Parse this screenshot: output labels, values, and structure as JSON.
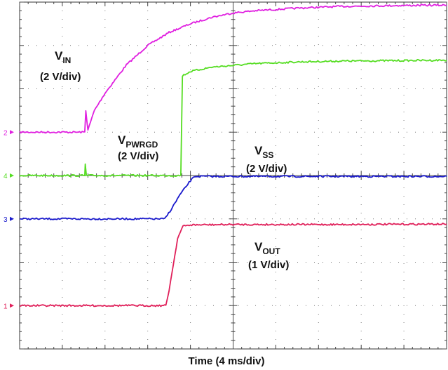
{
  "chart_data": {
    "type": "line",
    "xlabel": "Time (4 ms/div)",
    "x_unit_per_div": 4,
    "x_divisions": 10,
    "y_divisions": 8,
    "xlim": [
      0,
      40
    ],
    "grid": true,
    "series": [
      {
        "marker": "2",
        "color": "#e020e0",
        "label_main": "V",
        "label_sub": "IN",
        "label_scale": "(2 V/div)",
        "baseline_div": 5.0,
        "points": [
          [
            0,
            5.0
          ],
          [
            6.1,
            5.0
          ],
          [
            6.2,
            5.5
          ],
          [
            6.4,
            5.05
          ],
          [
            7,
            5.5
          ],
          [
            8,
            5.9
          ],
          [
            10,
            6.55
          ],
          [
            12,
            7.0
          ],
          [
            14,
            7.3
          ],
          [
            16,
            7.5
          ],
          [
            18,
            7.65
          ],
          [
            20,
            7.75
          ],
          [
            22,
            7.8
          ],
          [
            26,
            7.86
          ],
          [
            30,
            7.9
          ],
          [
            35,
            7.92
          ],
          [
            40,
            7.93
          ]
        ]
      },
      {
        "marker": "4",
        "color": "#55dd22",
        "label_main": "V",
        "label_sub": "PWRGD",
        "label_scale": "(2 V/div)",
        "baseline_div": 4.0,
        "points": [
          [
            0,
            4.0
          ],
          [
            6.1,
            4.0
          ],
          [
            6.15,
            4.25
          ],
          [
            6.25,
            4.0
          ],
          [
            15.1,
            4.0
          ],
          [
            15.25,
            6.3
          ],
          [
            16,
            6.4
          ],
          [
            18,
            6.5
          ],
          [
            22,
            6.58
          ],
          [
            26,
            6.62
          ],
          [
            30,
            6.64
          ],
          [
            35,
            6.65
          ],
          [
            40,
            6.66
          ]
        ]
      },
      {
        "marker": "3",
        "color": "#1a1acc",
        "label_main": "V",
        "label_sub": "SS",
        "label_scale": "(2 V/div)",
        "baseline_div": 3.0,
        "points": [
          [
            0,
            3.0
          ],
          [
            13.6,
            3.0
          ],
          [
            14.2,
            3.22
          ],
          [
            15.0,
            3.55
          ],
          [
            16.0,
            3.88
          ],
          [
            16.4,
            3.98
          ],
          [
            20,
            3.98
          ],
          [
            30,
            3.98
          ],
          [
            40,
            3.98
          ]
        ]
      },
      {
        "marker": "1",
        "color": "#e0205a",
        "label_main": "V",
        "label_sub": "OUT",
        "label_scale": "(1 V/div)",
        "baseline_div": 1.0,
        "points": [
          [
            0,
            1.0
          ],
          [
            13.7,
            1.0
          ],
          [
            14.0,
            1.35
          ],
          [
            14.4,
            1.95
          ],
          [
            14.8,
            2.55
          ],
          [
            15.3,
            2.83
          ],
          [
            16,
            2.86
          ],
          [
            20,
            2.87
          ],
          [
            30,
            2.87
          ],
          [
            40,
            2.88
          ]
        ]
      }
    ]
  }
}
